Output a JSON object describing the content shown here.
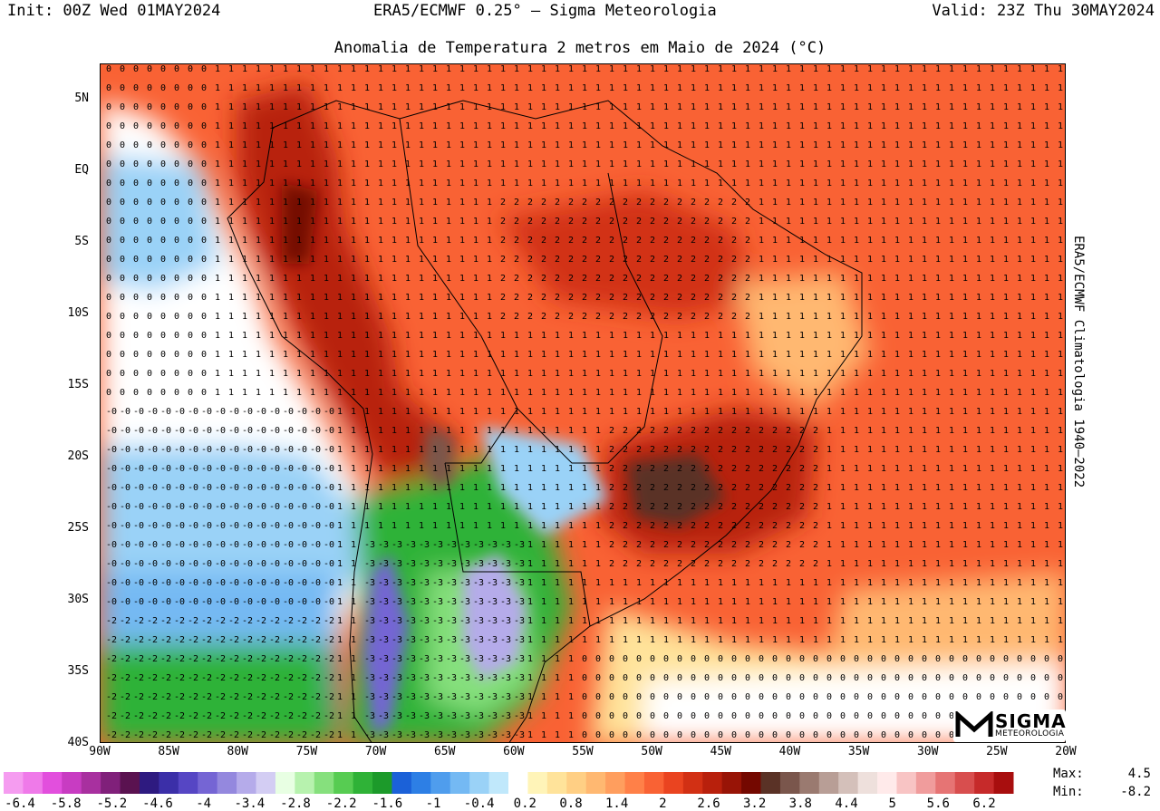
{
  "header": {
    "init": "Init: 00Z Wed 01MAY2024",
    "model": "ERA5/ECMWF 0.25° — Sigma Meteorologia",
    "valid": "Valid: 23Z Thu 30MAY2024"
  },
  "map": {
    "title": "Anomalia de Temperatura 2 metros em Maio de 2024 (°C)",
    "side_text": "ERA5/ECMWF Climatologia 1940–2022",
    "lat_labels": [
      "5N",
      "EQ",
      "5S",
      "10S",
      "15S",
      "20S",
      "25S",
      "30S",
      "35S",
      "40S"
    ],
    "lon_labels": [
      "90W",
      "85W",
      "80W",
      "75W",
      "70W",
      "65W",
      "60W",
      "55W",
      "50W",
      "45W",
      "40W",
      "35W",
      "30W",
      "25W",
      "20W"
    ],
    "extent": {
      "lon": [
        -90,
        -20
      ],
      "lat": [
        -40,
        7.5
      ]
    }
  },
  "legend": {
    "labels": [
      "-6.4",
      "-5.8",
      "-5.2",
      "-4.6",
      "-4",
      "-3.4",
      "-2.8",
      "-2.2",
      "-1.6",
      "-1",
      "-0.4",
      "0.2",
      "0.8",
      "1.4",
      "2",
      "2.6",
      "3.2",
      "3.8",
      "4.4",
      "5",
      "5.6",
      "6.2"
    ],
    "colors": [
      "#f59cf0",
      "#ef7ae9",
      "#e24fdd",
      "#c83cc2",
      "#a8309f",
      "#80207a",
      "#5a1250",
      "#2e1a80",
      "#3b2fa8",
      "#5646c4",
      "#7565d4",
      "#9488de",
      "#b5abea",
      "#d3cdf3",
      "#e8ffe3",
      "#b7f2ae",
      "#86e07d",
      "#57cc52",
      "#2fb237",
      "#1c9a2a",
      "#1b61d8",
      "#2d7fe5",
      "#4f9ded",
      "#74b9f3",
      "#9ad2f7",
      "#c0e8fb",
      "#ffffff",
      "#fff4b8",
      "#ffe39a",
      "#ffcf84",
      "#ffb871",
      "#ff9e5e",
      "#ff8048",
      "#f96234",
      "#ea4420",
      "#d23014",
      "#b8200c",
      "#981406",
      "#740800",
      "#5a3226",
      "#7a564c",
      "#9a7a70",
      "#b89e96",
      "#d4c0ba",
      "#eee0dc",
      "#ffeaea",
      "#f8c4c4",
      "#f09c9c",
      "#e67474",
      "#d84e4e",
      "#c62a2a",
      "#a80e0e"
    ]
  },
  "stats": {
    "max_label": "Max:",
    "max_value": "4.5",
    "min_label": "Min:",
    "min_value": "-8.2"
  },
  "logo": {
    "word": "SIGMA",
    "sub": "METEOROLOGIA"
  }
}
